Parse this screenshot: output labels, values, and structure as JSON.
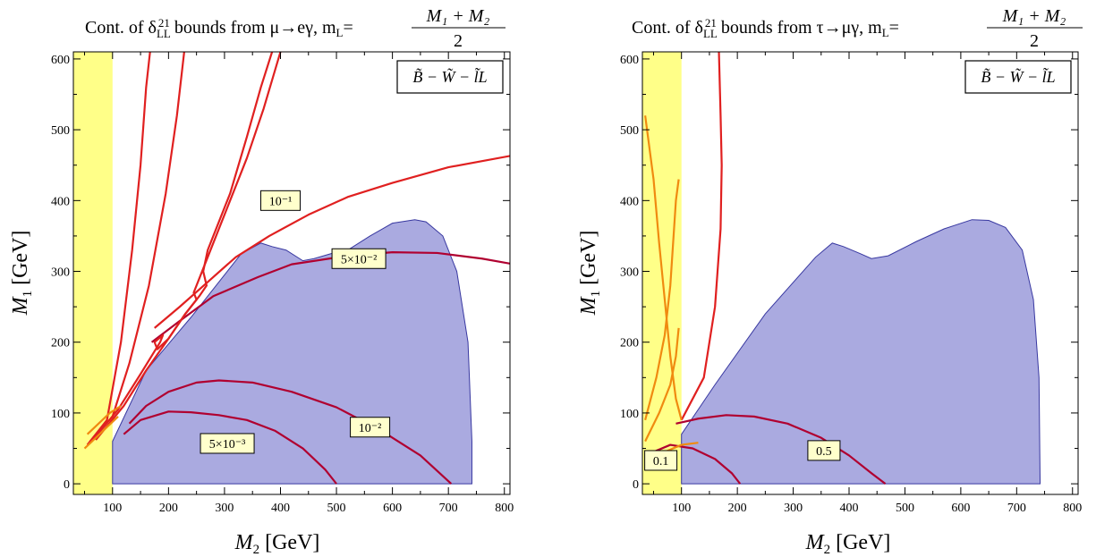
{
  "colors": {
    "excluded_band": "#ffff88",
    "region_fill": "#aaaae0",
    "region_edge": "#3838a0",
    "contour_red": "#e02020",
    "contour_crimson": "#b00030",
    "contour_orange": "#f08a10",
    "label_box": "#ffffcc"
  },
  "chart_data": [
    {
      "type": "line",
      "title_prefix": "Cont. of δ",
      "title_sub": "LL",
      "title_sup": "21",
      "title_mid": " bounds from μ→eγ, m",
      "title_msub": "L",
      "title_eq": "=",
      "title_num": "M₁ + M₂",
      "title_den": "2",
      "xlabel_var": "M",
      "xlabel_sub": "2",
      "xlabel_unit": " [GeV]",
      "ylabel_var": "M",
      "ylabel_sub": "1",
      "ylabel_unit": " [GeV]",
      "xlim": [
        30,
        810
      ],
      "ylim": [
        -15,
        610
      ],
      "xticks": [
        "100",
        "200",
        "300",
        "400",
        "500",
        "600",
        "700",
        "800"
      ],
      "yticks": [
        "0",
        "100",
        "200",
        "300",
        "400",
        "500",
        "600"
      ],
      "legend": "B̃ − W̃ − l̃L",
      "legend_position": "top-right",
      "excluded_band_x": [
        30,
        100
      ],
      "allowed_region": [
        [
          100,
          60
        ],
        [
          160,
          160
        ],
        [
          240,
          235
        ],
        [
          330,
          325
        ],
        [
          365,
          340
        ],
        [
          385,
          335
        ],
        [
          410,
          330
        ],
        [
          440,
          315
        ],
        [
          460,
          318
        ],
        [
          490,
          325
        ],
        [
          520,
          330
        ],
        [
          560,
          350
        ],
        [
          600,
          368
        ],
        [
          640,
          373
        ],
        [
          660,
          370
        ],
        [
          690,
          350
        ],
        [
          715,
          300
        ],
        [
          735,
          200
        ],
        [
          742,
          60
        ],
        [
          742,
          0
        ],
        [
          100,
          0
        ]
      ],
      "series": [
        {
          "label": "10⁻¹",
          "color_key": "contour_red",
          "points": [
            [
              175,
              220
            ],
            [
              220,
              250
            ],
            [
              270,
              285
            ],
            [
              320,
              320
            ],
            [
              380,
              350
            ],
            [
              450,
              380
            ],
            [
              520,
              405
            ],
            [
              600,
              425
            ],
            [
              700,
              447
            ],
            [
              810,
              463
            ]
          ]
        },
        {
          "label": "5×10⁻²",
          "color_key": "contour_crimson",
          "points": [
            [
              170,
              200
            ],
            [
              220,
              230
            ],
            [
              280,
              265
            ],
            [
              360,
              292
            ],
            [
              420,
              310
            ],
            [
              520,
              322
            ],
            [
              600,
              327
            ],
            [
              680,
              326
            ],
            [
              760,
              318
            ],
            [
              810,
              311
            ]
          ]
        },
        {
          "label": "10⁻²",
          "color_key": "contour_crimson",
          "points": [
            [
              130,
              85
            ],
            [
              160,
              110
            ],
            [
              200,
              130
            ],
            [
              250,
              143
            ],
            [
              290,
              146
            ],
            [
              350,
              143
            ],
            [
              420,
              130
            ],
            [
              500,
              108
            ],
            [
              580,
              75
            ],
            [
              650,
              40
            ],
            [
              705,
              0
            ]
          ]
        },
        {
          "label": "5×10⁻³",
          "color_key": "contour_crimson",
          "points": [
            [
              120,
              70
            ],
            [
              150,
              90
            ],
            [
              200,
              102
            ],
            [
              240,
              101
            ],
            [
              290,
              97
            ],
            [
              340,
              90
            ],
            [
              390,
              75
            ],
            [
              440,
              50
            ],
            [
              480,
              20
            ],
            [
              500,
              0
            ]
          ]
        },
        {
          "label": "",
          "color_key": "contour_red",
          "points": [
            [
              55,
              55
            ],
            [
              90,
              90
            ],
            [
              115,
              200
            ],
            [
              135,
              330
            ],
            [
              150,
              450
            ],
            [
              160,
              560
            ],
            [
              167,
              610
            ]
          ]
        },
        {
          "label": "",
          "color_key": "contour_red",
          "points": [
            [
              60,
              60
            ],
            [
              100,
              95
            ],
            [
              130,
              170
            ],
            [
              165,
              280
            ],
            [
              195,
              410
            ],
            [
              215,
              520
            ],
            [
              228,
              610
            ]
          ]
        },
        {
          "label": "",
          "color_key": "contour_red",
          "points": [
            [
              65,
              62
            ],
            [
              110,
              105
            ],
            [
              150,
              155
            ],
            [
              185,
              200
            ],
            [
              190,
              210
            ],
            [
              175,
              200
            ],
            [
              180,
              190
            ],
            [
              200,
              205
            ],
            [
              230,
              240
            ],
            [
              255,
              265
            ],
            [
              268,
              280
            ],
            [
              262,
              300
            ],
            [
              270,
              330
            ],
            [
              310,
              410
            ],
            [
              340,
              490
            ],
            [
              365,
              560
            ],
            [
              385,
              610
            ]
          ]
        },
        {
          "label": "",
          "color_key": "contour_red",
          "points": [
            [
              70,
              62
            ],
            [
              120,
              110
            ],
            [
              160,
              160
            ],
            [
              200,
              205
            ],
            [
              230,
              240
            ],
            [
              250,
              260
            ],
            [
              245,
              270
            ],
            [
              255,
              290
            ],
            [
              280,
              340
            ],
            [
              310,
              400
            ],
            [
              340,
              460
            ],
            [
              370,
              530
            ],
            [
              400,
              610
            ]
          ]
        },
        {
          "label": "",
          "color_key": "contour_orange",
          "points": [
            [
              50,
              50
            ],
            [
              70,
              65
            ],
            [
              90,
              80
            ],
            [
              110,
              95
            ]
          ]
        },
        {
          "label": "",
          "color_key": "contour_orange",
          "points": [
            [
              55,
              70
            ],
            [
              75,
              85
            ],
            [
              95,
              100
            ],
            [
              115,
              110
            ]
          ]
        }
      ],
      "contour_labels": [
        {
          "text": "10⁻¹",
          "x": 400,
          "y": 400
        },
        {
          "text": "5×10⁻²",
          "x": 540,
          "y": 318
        },
        {
          "text": "10⁻²",
          "x": 560,
          "y": 80
        },
        {
          "text": "5×10⁻³",
          "x": 305,
          "y": 57
        }
      ]
    },
    {
      "type": "line",
      "title_prefix": "Cont. of δ",
      "title_sub": "LL",
      "title_sup": "21",
      "title_mid": " bounds from τ→μγ, m",
      "title_msub": "L",
      "title_eq": "=",
      "title_num": "M₁ + M₂",
      "title_den": "2",
      "xlabel_var": "M",
      "xlabel_sub": "2",
      "xlabel_unit": " [GeV]",
      "ylabel_var": "M",
      "ylabel_sub": "1",
      "ylabel_unit": " [GeV]",
      "xlim": [
        30,
        810
      ],
      "ylim": [
        -15,
        610
      ],
      "xticks": [
        "100",
        "200",
        "300",
        "400",
        "500",
        "600",
        "700",
        "800"
      ],
      "yticks": [
        "0",
        "100",
        "200",
        "300",
        "400",
        "500",
        "600"
      ],
      "legend": "B̃ − W̃ − l̃L",
      "legend_position": "top-right",
      "excluded_band_x": [
        30,
        100
      ],
      "allowed_region": [
        [
          100,
          70
        ],
        [
          160,
          140
        ],
        [
          250,
          240
        ],
        [
          340,
          320
        ],
        [
          370,
          340
        ],
        [
          390,
          335
        ],
        [
          420,
          325
        ],
        [
          440,
          318
        ],
        [
          470,
          322
        ],
        [
          520,
          342
        ],
        [
          570,
          360
        ],
        [
          620,
          373
        ],
        [
          650,
          372
        ],
        [
          680,
          362
        ],
        [
          710,
          330
        ],
        [
          730,
          260
        ],
        [
          740,
          150
        ],
        [
          742,
          0
        ],
        [
          100,
          0
        ]
      ],
      "series": [
        {
          "label": "0.1",
          "color_key": "contour_crimson",
          "points": [
            [
              35,
              40
            ],
            [
              80,
              55
            ],
            [
              120,
              50
            ],
            [
              160,
              35
            ],
            [
              190,
              15
            ],
            [
              205,
              0
            ]
          ]
        },
        {
          "label": "0.5",
          "color_key": "contour_crimson",
          "points": [
            [
              90,
              85
            ],
            [
              130,
              92
            ],
            [
              180,
              97
            ],
            [
              230,
              95
            ],
            [
              290,
              85
            ],
            [
              350,
              65
            ],
            [
              400,
              40
            ],
            [
              440,
              15
            ],
            [
              465,
              0
            ]
          ]
        },
        {
          "label": "",
          "color_key": "contour_red",
          "points": [
            [
              100,
              90
            ],
            [
              140,
              150
            ],
            [
              160,
              250
            ],
            [
              170,
              360
            ],
            [
              172,
              450
            ],
            [
              170,
              520
            ],
            [
              167,
              610
            ]
          ]
        },
        {
          "label": "",
          "color_key": "contour_orange",
          "points": [
            [
              35,
              520
            ],
            [
              50,
              430
            ],
            [
              60,
              340
            ],
            [
              70,
              260
            ],
            [
              80,
              180
            ],
            [
              90,
              120
            ],
            [
              100,
              90
            ]
          ]
        },
        {
          "label": "",
          "color_key": "contour_orange",
          "points": [
            [
              35,
              90
            ],
            [
              55,
              150
            ],
            [
              70,
              210
            ],
            [
              80,
              280
            ],
            [
              85,
              340
            ],
            [
              90,
              400
            ],
            [
              95,
              430
            ]
          ]
        },
        {
          "label": "",
          "color_key": "contour_orange",
          "points": [
            [
              35,
              60
            ],
            [
              60,
              100
            ],
            [
              80,
              140
            ],
            [
              90,
              180
            ],
            [
              95,
              220
            ]
          ]
        },
        {
          "label": "",
          "color_key": "contour_orange",
          "points": [
            [
              35,
              30
            ],
            [
              70,
              45
            ],
            [
              100,
              55
            ],
            [
              130,
              58
            ]
          ]
        }
      ],
      "contour_labels": [
        {
          "text": "0.1",
          "x": 63,
          "y": 33
        },
        {
          "text": "0.5",
          "x": 355,
          "y": 47
        }
      ]
    }
  ]
}
